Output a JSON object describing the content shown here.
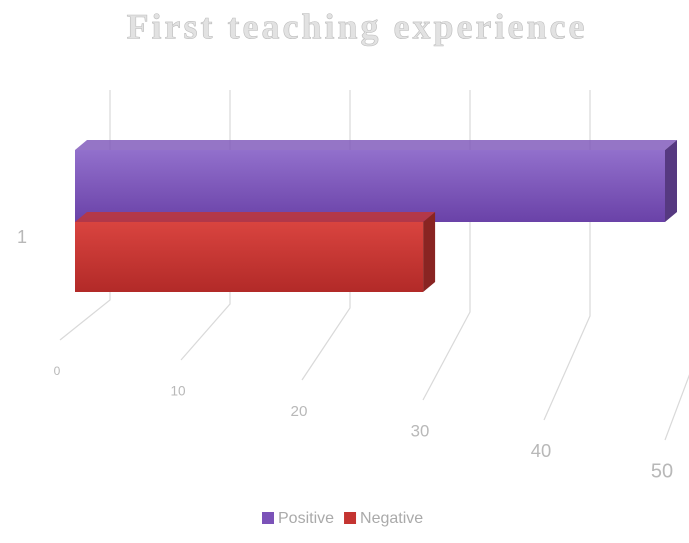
{
  "chart_data": {
    "type": "bar3d_horizontal",
    "title": "First teaching experience",
    "categories": [
      "1"
    ],
    "series": [
      {
        "name": "Positive",
        "color": "#7b52b8",
        "values": [
          50
        ]
      },
      {
        "name": "Negative",
        "color": "#c43431",
        "values": [
          29.5
        ]
      }
    ],
    "xlim": [
      0,
      50
    ],
    "xticks": [
      0,
      10,
      20,
      30,
      40,
      50
    ],
    "grid": true,
    "legend": "bottom"
  }
}
